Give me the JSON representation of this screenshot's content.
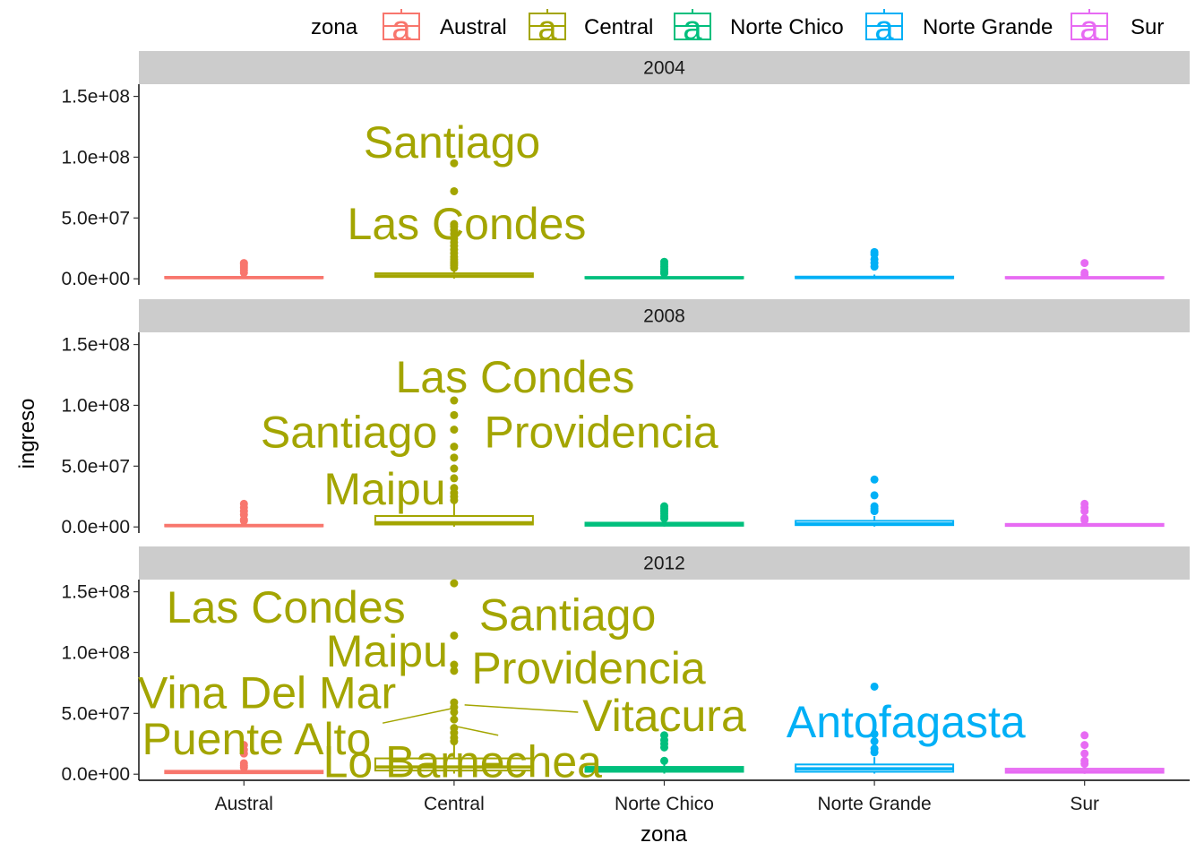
{
  "chart_data": {
    "type": "boxplot",
    "x": {
      "label": "zona",
      "categories": [
        "Austral",
        "Central",
        "Norte Chico",
        "Norte Grande",
        "Sur"
      ]
    },
    "y": {
      "label": "ingreso",
      "range": [
        -5000000,
        160000000
      ],
      "ticks": [
        0,
        50000000,
        100000000,
        150000000
      ],
      "tick_labels": [
        "0.0e+00",
        "5.0e+07",
        "1.0e+08",
        "1.5e+08"
      ]
    },
    "legend": {
      "title": "zona",
      "position": "top",
      "entries": [
        "Austral",
        "Central",
        "Norte Chico",
        "Norte Grande",
        "Sur"
      ],
      "key_glyph": "a"
    },
    "colors": {
      "Austral": "#F8766D",
      "Central": "#A3A500",
      "Norte Chico": "#00BF7D",
      "Norte Grande": "#00B0F6",
      "Sur": "#E76BF3"
    },
    "grid": false,
    "facets": [
      {
        "strip": "2004",
        "boxes": [
          {
            "zona": "Austral",
            "q1": 500000,
            "median": 900000,
            "q3": 1600000,
            "whisker_low": 100000,
            "whisker_high": 3000000,
            "outliers": [
              5000000,
              7000000,
              9000000,
              10500000,
              12000000,
              13000000
            ]
          },
          {
            "zona": "Central",
            "q1": 1500000,
            "median": 2500000,
            "q3": 4500000,
            "whisker_low": 200000,
            "whisker_high": 8000000,
            "outliers": [
              9000000,
              11000000,
              12500000,
              14000000,
              16000000,
              18000000,
              21000000,
              24000000,
              27000000,
              30000000,
              33000000,
              37000000,
              40000000,
              43000000,
              45000000,
              72000000,
              95000000
            ]
          },
          {
            "zona": "Norte Chico",
            "q1": 400000,
            "median": 800000,
            "q3": 1500000,
            "whisker_low": 100000,
            "whisker_high": 3000000,
            "outliers": [
              4500000,
              6000000,
              8000000,
              10000000,
              12000000,
              14000000
            ]
          },
          {
            "zona": "Norte Grande",
            "q1": 500000,
            "median": 1000000,
            "q3": 1800000,
            "whisker_low": 100000,
            "whisker_high": 3500000,
            "outliers": [
              10000000,
              13000000,
              16000000,
              20000000,
              22000000
            ]
          },
          {
            "zona": "Sur",
            "q1": 400000,
            "median": 800000,
            "q3": 1500000,
            "whisker_low": 100000,
            "whisker_high": 2800000,
            "outliers": [
              3500000,
              5000000,
              13000000
            ]
          }
        ],
        "labels": [
          {
            "text": "Santiago",
            "zona": "Central",
            "label_x": 0.99,
            "label_y": 112000000
          },
          {
            "text": "Las Condes",
            "zona": "Central",
            "label_x": 1.06,
            "label_y": 45000000
          }
        ]
      },
      {
        "strip": "2008",
        "boxes": [
          {
            "zona": "Austral",
            "q1": 500000,
            "median": 1000000,
            "q3": 1800000,
            "whisker_low": 100000,
            "whisker_high": 3500000,
            "outliers": [
              5000000,
              6000000,
              10000000,
              13000000,
              16000000,
              19000000
            ]
          },
          {
            "zona": "Central",
            "q1": 2000000,
            "median": 3500000,
            "q3": 9000000,
            "whisker_low": 200000,
            "whisker_high": 20000000,
            "outliers": [
              22000000,
              25000000,
              28000000,
              32000000,
              40000000,
              48000000,
              57000000,
              66000000,
              80000000,
              92000000,
              104000000
            ]
          },
          {
            "zona": "Norte Chico",
            "q1": 1000000,
            "median": 2000000,
            "q3": 3500000,
            "whisker_low": 300000,
            "whisker_high": 6000000,
            "outliers": [
              7000000,
              9000000,
              11000000,
              13000000,
              15000000,
              17000000
            ]
          },
          {
            "zona": "Norte Grande",
            "q1": 1500000,
            "median": 2500000,
            "q3": 5000000,
            "whisker_low": 300000,
            "whisker_high": 9000000,
            "outliers": [
              13000000,
              15000000,
              17000000,
              26000000,
              39000000
            ]
          },
          {
            "zona": "Sur",
            "q1": 800000,
            "median": 1500000,
            "q3": 2500000,
            "whisker_low": 200000,
            "whisker_high": 4500000,
            "outliers": [
              5500000,
              7000000,
              13000000,
              16000000,
              19000000
            ]
          }
        ],
        "labels": [
          {
            "text": "Las Condes",
            "zona": "Central",
            "label_x": 1.29,
            "label_y": 123000000
          },
          {
            "text": "Santiago",
            "zona": "Central",
            "label_x": 0.5,
            "label_y": 78000000
          },
          {
            "text": "Providencia",
            "zona": "Central",
            "label_x": 1.7,
            "label_y": 78000000
          },
          {
            "text": "Maipu",
            "zona": "Central",
            "label_x": 0.67,
            "label_y": 31000000
          }
        ]
      },
      {
        "strip": "2012",
        "boxes": [
          {
            "zona": "Austral",
            "q1": 800000,
            "median": 1500000,
            "q3": 2800000,
            "whisker_low": 200000,
            "whisker_high": 5000000,
            "outliers": [
              5500000,
              7000000,
              9000000,
              17000000,
              20000000,
              24000000
            ]
          },
          {
            "zona": "Central",
            "q1": 3000000,
            "median": 6000000,
            "q3": 13000000,
            "whisker_low": 500000,
            "whisker_high": 25000000,
            "outliers": [
              27000000,
              30000000,
              34000000,
              38000000,
              45000000,
              51000000,
              55000000,
              59000000,
              85000000,
              90000000,
              114000000,
              157000000
            ]
          },
          {
            "zona": "Norte Chico",
            "q1": 2000000,
            "median": 4000000,
            "q3": 6000000,
            "whisker_low": 500000,
            "whisker_high": 10000000,
            "outliers": [
              11000000,
              22000000,
              25000000,
              28000000,
              32000000
            ]
          },
          {
            "zona": "Norte Grande",
            "q1": 2000000,
            "median": 4500000,
            "q3": 8000000,
            "whisker_low": 500000,
            "whisker_high": 14000000,
            "outliers": [
              18000000,
              21000000,
              27000000,
              33000000,
              72000000
            ]
          },
          {
            "zona": "Sur",
            "q1": 1200000,
            "median": 2500000,
            "q3": 4500000,
            "whisker_low": 300000,
            "whisker_high": 7500000,
            "outliers": [
              8500000,
              11000000,
              17000000,
              24000000,
              32000000
            ]
          }
        ],
        "labels": [
          {
            "text": "Las Condes",
            "zona": "Central",
            "label_x": 0.2,
            "label_y": 137000000
          },
          {
            "text": "Santiago",
            "zona": "Central",
            "label_x": 1.54,
            "label_y": 131000000
          },
          {
            "text": "Maipu",
            "zona": "Central",
            "label_x": 0.68,
            "label_y": 101000000
          },
          {
            "text": "Providencia",
            "zona": "Central",
            "label_x": 1.64,
            "label_y": 87000000
          },
          {
            "text": "Vina Del Mar",
            "zona": "Central",
            "label_x": 0.11,
            "label_y": 67000000
          },
          {
            "text": "Vitacura",
            "zona": "Central",
            "label_x": 2.0,
            "label_y": 48000000,
            "segment_to": [
              1.05,
              57000000
            ],
            "segment_from": [
              1.59,
              51000000
            ]
          },
          {
            "text": "Antofagasta",
            "zona": "Norte Grande",
            "label_x": 3.15,
            "label_y": 43000000
          },
          {
            "text": "Puente Alto",
            "zona": "Central",
            "label_x": 0.06,
            "label_y": 29000000,
            "segment_to": [
              0.99,
              54000000
            ],
            "segment_from": [
              0.66,
              42000000
            ]
          },
          {
            "text": "Lo Barnechea",
            "zona": "Central",
            "label_x": 1.04,
            "label_y": 10000000,
            "segment_to": [
              0.99,
              40000000
            ],
            "segment_from": [
              1.21,
              32000000
            ]
          }
        ]
      }
    ]
  }
}
